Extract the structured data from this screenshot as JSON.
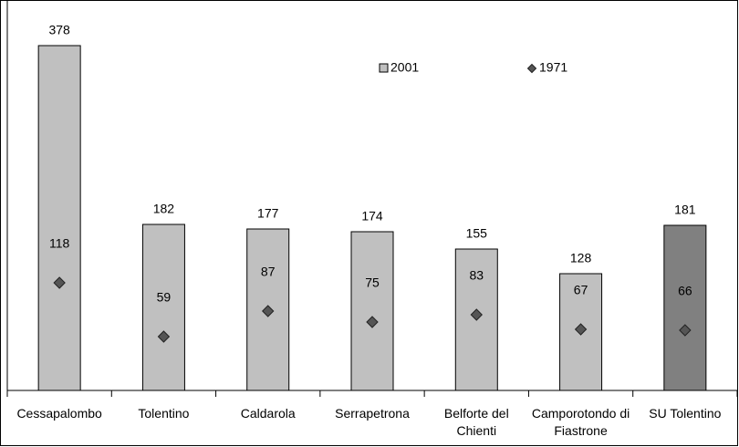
{
  "chart_data": {
    "type": "bar",
    "categories": [
      "Cessapalombo",
      "Tolentino",
      "Caldarola",
      "Serrapetrona",
      "Belforte del Chienti",
      "Camporotondo di Fiastrone",
      "SU Tolentino"
    ],
    "series": [
      {
        "name": "2001",
        "marker": "bar",
        "color": "#c0c0c0",
        "colors": [
          "#c0c0c0",
          "#c0c0c0",
          "#c0c0c0",
          "#c0c0c0",
          "#c0c0c0",
          "#c0c0c0",
          "#808080"
        ],
        "values": [
          378,
          182,
          177,
          174,
          155,
          128,
          181
        ]
      },
      {
        "name": "1971",
        "marker": "diamond",
        "color": "#555555",
        "values": [
          118,
          59,
          87,
          75,
          83,
          67,
          66
        ]
      }
    ],
    "ylim": [
      0,
      420
    ],
    "grid": false,
    "legend": "top-right"
  }
}
